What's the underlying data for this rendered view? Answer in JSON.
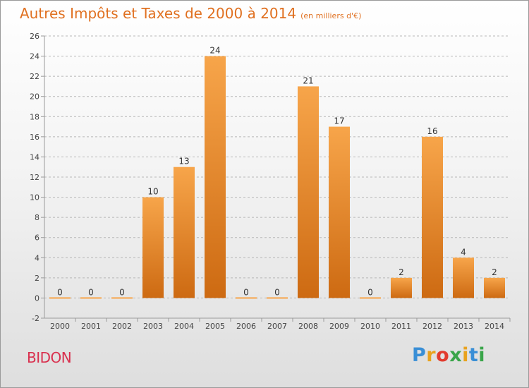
{
  "title": "Autres Impôts et Taxes de 2000 à 2014",
  "subtitle": "(en milliers d'€)",
  "commune": "BIDON",
  "logo": {
    "letters": [
      {
        "ch": "P",
        "color": "#3a8fd6"
      },
      {
        "ch": "r",
        "color": "#e9a21e"
      },
      {
        "ch": "o",
        "color": "#e23b2e"
      },
      {
        "ch": "x",
        "color": "#3aa54a"
      },
      {
        "ch": "i",
        "color": "#e9a21e"
      },
      {
        "ch": "t",
        "color": "#3a8fd6"
      },
      {
        "ch": "i",
        "color": "#3aa54a"
      }
    ]
  },
  "colors": {
    "bar_light": "#f7a54a",
    "bar_dark": "#cd6a12",
    "axis": "#9a9a9a",
    "grid": "#b8b8b8",
    "title": "#e07020",
    "commune": "#d9304e"
  },
  "chart_data": {
    "type": "bar",
    "title": "Autres Impôts et Taxes de 2000 à 2014",
    "subtitle": "(en milliers d'€)",
    "xlabel": "",
    "ylabel": "",
    "categories": [
      "2000",
      "2001",
      "2002",
      "2003",
      "2004",
      "2005",
      "2006",
      "2007",
      "2008",
      "2009",
      "2010",
      "2011",
      "2012",
      "2013",
      "2014"
    ],
    "values": [
      0,
      0,
      0,
      10,
      13,
      24,
      0,
      0,
      21,
      17,
      0,
      2,
      16,
      4,
      2
    ],
    "ylim": [
      -2,
      26
    ],
    "yticks": [
      -2,
      0,
      2,
      4,
      6,
      8,
      10,
      12,
      14,
      16,
      18,
      20,
      22,
      24,
      26
    ],
    "grid": "horizontal dashed",
    "data_labels": true,
    "legend": "none"
  }
}
